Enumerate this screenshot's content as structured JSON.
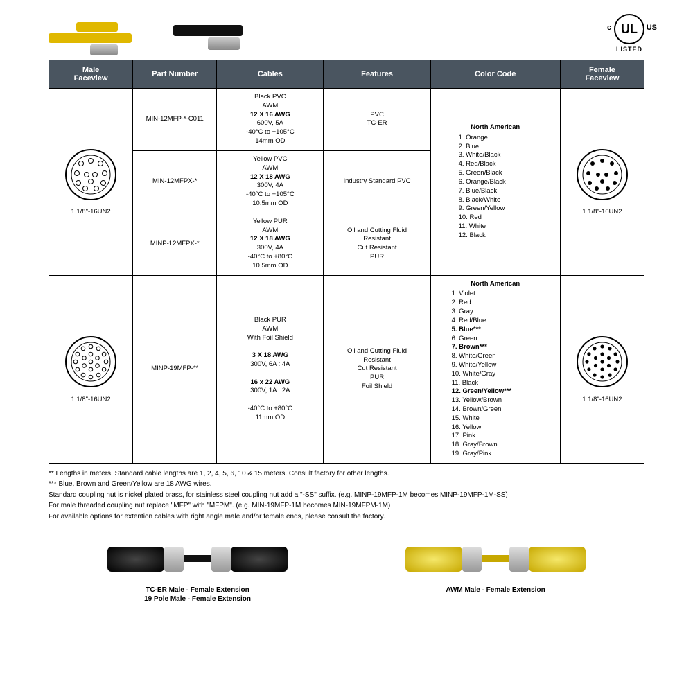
{
  "ul": {
    "c": "c",
    "us": "US",
    "listed": "LISTED",
    "ul": "UL"
  },
  "headers": {
    "male": "Male\nFaceview",
    "pn": "Part Number",
    "cables": "Cables",
    "features": "Features",
    "cc": "Color Code",
    "female": "Female\nFaceview"
  },
  "rows": {
    "r1": {
      "pn": "MIN-12MFP-*-C011",
      "cables": "Black PVC\nAWM\n12 X 16 AWG\n600V, 5A\n-40°C to +105°C\n14mm OD",
      "cables_bold_line": "12 X 16 AWG",
      "features": "PVC\nTC-ER"
    },
    "r2": {
      "pn": "MIN-12MFPX-*",
      "cables": "Yellow PVC\nAWM\n12 X 18 AWG\n300V, 4A\n-40°C to +105°C\n10.5mm OD",
      "cables_bold_line": "12 X 18 AWG",
      "features": "Industry Standard PVC"
    },
    "r3": {
      "pn": "MINP-12MFPX-*",
      "cables": "Yellow PUR\nAWM\n12 X 18 AWG\n300V, 4A\n-40°C to +80°C\n10.5mm OD",
      "cables_bold_line": "12 X 18 AWG",
      "features": "Oil and Cutting Fluid\nResistant\nCut Resistant\nPUR"
    },
    "r4": {
      "pn": "MINP-19MFP-**",
      "cables_top": "Black PUR\nAWM\nWith Foil Shield",
      "cables_awg1": "3 X 18 AWG",
      "cables_awg1_sub": "300V, 6A : 4A",
      "cables_awg2": "16 x 22 AWG",
      "cables_awg2_sub": "300V, 1A : 2A",
      "cables_bot": "-40°C to +80°C\n11mm OD",
      "features": "Oil and Cutting Fluid\nResistant\nCut Resistant\nPUR\nFoil Shield"
    }
  },
  "cc12": {
    "title": "North American",
    "items": [
      "1. Orange",
      "2. Blue",
      "3. White/Black",
      "4. Red/Black",
      "5. Green/Black",
      "6. Orange/Black",
      "7. Blue/Black",
      "8. Black/White",
      "9. Green/Yellow",
      "10. Red",
      "11. White",
      "12. Black"
    ]
  },
  "cc19": {
    "title": "North American",
    "items": [
      {
        "t": "1. Violet"
      },
      {
        "t": "2. Red"
      },
      {
        "t": "3. Gray"
      },
      {
        "t": "4. Red/Blue"
      },
      {
        "t": "5. Blue***",
        "b": true
      },
      {
        "t": "6. Green"
      },
      {
        "t": "7. Brown***",
        "b": true
      },
      {
        "t": "8. White/Green"
      },
      {
        "t": "9. White/Yellow"
      },
      {
        "t": "10. White/Gray"
      },
      {
        "t": "11. Black"
      },
      {
        "t": "12. Green/Yellow***",
        "b": true
      },
      {
        "t": "13. Yellow/Brown"
      },
      {
        "t": "14. Brown/Green"
      },
      {
        "t": "15. White"
      },
      {
        "t": "16. Yellow"
      },
      {
        "t": "17. Pink"
      },
      {
        "t": "18. Gray/Brown"
      },
      {
        "t": "19. Gray/Pink"
      }
    ]
  },
  "facelabel12": "1 1/8\"-16UN2",
  "facelabel19": "1 1/8\"-16UN2",
  "notes": [
    "** Lengths in meters.  Standard cable lengths are 1, 2, 4, 5, 6, 10 & 15 meters. Consult factory for other lengths.",
    "*** Blue, Brown and Green/Yellow are 18 AWG wires.",
    "Standard coupling nut is nickel plated brass, for stainless steel coupling nut add a \"-SS\" suffix. (e.g. MINP-19MFP-1M becomes MINP-19MFP-1M-SS)",
    "For male threaded coupling nut replace \"MFP\" with \"MFPM\". (e.g. MIN-19MFP-1M becomes MIN-19MFPM-1M)",
    "For available options for extention cables with right angle male and/or female ends, please consult the factory."
  ],
  "ext": {
    "black": "TC-ER Male - Female Extension\n19 Pole Male - Female Extension",
    "yellow": "AWM Male - Female Extension"
  }
}
